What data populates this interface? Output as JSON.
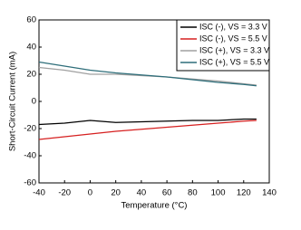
{
  "chart_data": {
    "type": "line",
    "x_label": "Temperature (°C)",
    "y_label": "Short-Circuit Current (mA)",
    "x": [
      -40,
      -20,
      0,
      20,
      40,
      60,
      80,
      100,
      120,
      130
    ],
    "series": [
      {
        "name": "ISC (-), VS = 3.3 V",
        "color": "#000000",
        "values": [
          -17,
          -16,
          -14,
          -15.5,
          -15,
          -14.5,
          -14,
          -14,
          -13,
          -13
        ]
      },
      {
        "name": "ISC (-), VS = 5.5 V",
        "color": "#d62020",
        "values": [
          -28,
          -26,
          -24,
          -22,
          -20.5,
          -19,
          -17.5,
          -16,
          -14.5,
          -14
        ]
      },
      {
        "name": "ISC (+), VS = 3.3 V",
        "color": "#a0a0a0",
        "values": [
          25,
          23,
          20,
          20,
          19,
          18,
          16.5,
          15,
          13,
          12
        ]
      },
      {
        "name": "ISC (+), VS = 5.5 V",
        "color": "#2e6e7a",
        "values": [
          29,
          26,
          23,
          21,
          19.5,
          18,
          16,
          14,
          12.5,
          11.5
        ]
      }
    ],
    "xlim": [
      -40,
      140
    ],
    "xticks": [
      -40,
      -20,
      0,
      20,
      40,
      60,
      80,
      100,
      120,
      140
    ],
    "ylim": [
      -60,
      60
    ],
    "yticks": [
      -60,
      -40,
      -20,
      0,
      20,
      40,
      60
    ],
    "grid": false,
    "legend": "upper right"
  }
}
